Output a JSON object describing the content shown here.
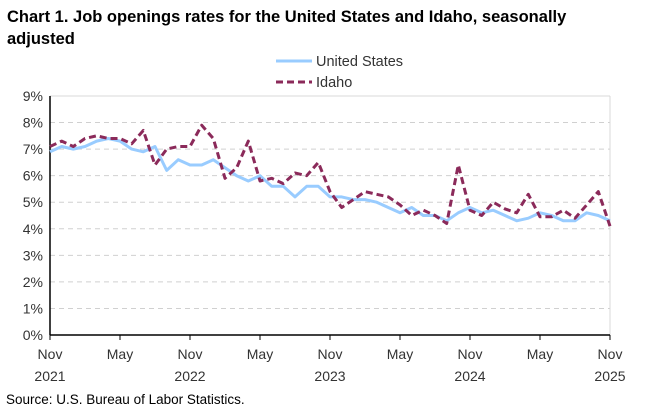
{
  "chart_data": {
    "type": "line",
    "title": "Chart 1. Job openings rates for the United States and Idaho, seasonally adjusted",
    "source": "Source: U.S. Bureau of Labor Statistics.",
    "x_start": "Nov 2021",
    "x_end": "Nov 2025",
    "x_ticks": [
      {
        "month": "Nov",
        "year": "2021",
        "index": 0
      },
      {
        "month": "May",
        "year": "",
        "index": 6
      },
      {
        "month": "Nov",
        "year": "2022",
        "index": 12
      },
      {
        "month": "May",
        "year": "",
        "index": 18
      },
      {
        "month": "Nov",
        "year": "2023",
        "index": 24
      },
      {
        "month": "May",
        "year": "",
        "index": 30
      },
      {
        "month": "Nov",
        "year": "2024",
        "index": 36
      },
      {
        "month": "May",
        "year": "",
        "index": 42
      },
      {
        "month": "Nov",
        "year": "2025",
        "index": 48
      }
    ],
    "y_ticks": [
      "0%",
      "1%",
      "2%",
      "3%",
      "4%",
      "5%",
      "6%",
      "7%",
      "8%",
      "9%"
    ],
    "ylim": [
      0,
      9
    ],
    "grid": true,
    "legend_position": "top",
    "series": [
      {
        "name": "United States",
        "color": "#99ccff",
        "style": "solid",
        "values": [
          6.9,
          7.1,
          7.0,
          7.1,
          7.3,
          7.4,
          7.3,
          7.0,
          6.9,
          7.1,
          6.2,
          6.6,
          6.4,
          6.4,
          6.6,
          6.3,
          6.0,
          5.8,
          6.0,
          5.6,
          5.6,
          5.2,
          5.6,
          5.6,
          5.2,
          5.2,
          5.1,
          5.1,
          5.0,
          4.8,
          4.6,
          4.8,
          4.5,
          4.5,
          4.3,
          4.6,
          4.8,
          4.6,
          4.7,
          4.5,
          4.3,
          4.4,
          4.6,
          4.5,
          4.3,
          4.3,
          4.6,
          4.5,
          4.3
        ]
      },
      {
        "name": "Idaho",
        "color": "#8b2a5a",
        "style": "dashed",
        "values": [
          7.1,
          7.3,
          7.1,
          7.4,
          7.5,
          7.4,
          7.4,
          7.2,
          7.7,
          6.4,
          7.0,
          7.1,
          7.1,
          7.9,
          7.4,
          5.9,
          6.3,
          7.3,
          5.8,
          5.9,
          5.7,
          6.1,
          6.0,
          6.5,
          5.4,
          4.8,
          5.1,
          5.4,
          5.3,
          5.2,
          4.9,
          4.5,
          4.7,
          4.5,
          4.2,
          6.4,
          4.7,
          4.5,
          5.0,
          4.75,
          4.6,
          5.3,
          4.45,
          4.45,
          4.7,
          4.4,
          4.9,
          5.4,
          4.1
        ]
      }
    ]
  }
}
